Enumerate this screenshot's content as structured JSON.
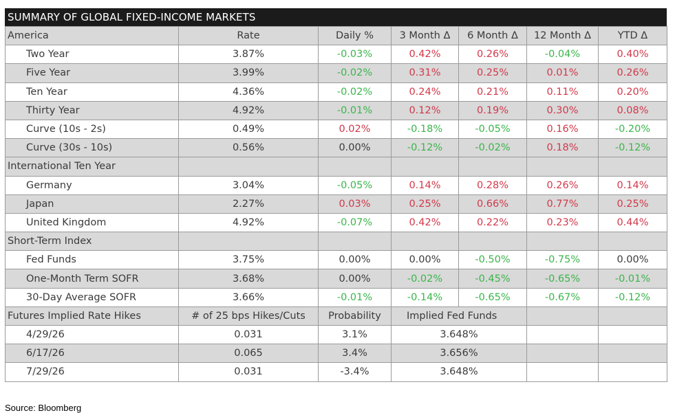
{
  "title": "SUMMARY OF GLOBAL FIXED-INCOME MARKETS",
  "colors": {
    "negative": "#3ab54a",
    "positive": "#d2384a",
    "header_bg": "#1b1b1b",
    "shade": "#d9d9d9"
  },
  "america": {
    "label": "America",
    "columns": [
      "Rate",
      "Daily %",
      "3 Month Δ",
      "6 Month Δ",
      "12 Month Δ",
      "YTD Δ"
    ],
    "rows": [
      {
        "name": "Two Year",
        "rate": "3.87%",
        "daily": "-0.03%",
        "m3": "0.42%",
        "m6": "0.26%",
        "m12": "-0.04%",
        "ytd": "0.40%"
      },
      {
        "name": "Five Year",
        "rate": "3.99%",
        "daily": "-0.02%",
        "m3": "0.31%",
        "m6": "0.25%",
        "m12": "0.01%",
        "ytd": "0.26%"
      },
      {
        "name": "Ten Year",
        "rate": "4.36%",
        "daily": "-0.02%",
        "m3": "0.24%",
        "m6": "0.21%",
        "m12": "0.11%",
        "ytd": "0.20%"
      },
      {
        "name": "Thirty Year",
        "rate": "4.92%",
        "daily": "-0.01%",
        "m3": "0.12%",
        "m6": "0.19%",
        "m12": "0.30%",
        "ytd": "0.08%"
      },
      {
        "name": "Curve (10s - 2s)",
        "rate": "0.49%",
        "daily": "0.02%",
        "m3": "-0.18%",
        "m6": "-0.05%",
        "m12": "0.16%",
        "ytd": "-0.20%"
      },
      {
        "name": "Curve (30s - 10s)",
        "rate": "0.56%",
        "daily": "0.00%",
        "m3": "-0.12%",
        "m6": "-0.02%",
        "m12": "0.18%",
        "ytd": "-0.12%"
      }
    ]
  },
  "international": {
    "label": "International Ten Year",
    "rows": [
      {
        "name": "Germany",
        "rate": "3.04%",
        "daily": "-0.05%",
        "m3": "0.14%",
        "m6": "0.28%",
        "m12": "0.26%",
        "ytd": "0.14%"
      },
      {
        "name": "Japan",
        "rate": "2.27%",
        "daily": "0.03%",
        "m3": "0.25%",
        "m6": "0.66%",
        "m12": "0.77%",
        "ytd": "0.25%"
      },
      {
        "name": "United Kingdom",
        "rate": "4.92%",
        "daily": "-0.07%",
        "m3": "0.42%",
        "m6": "0.22%",
        "m12": "0.23%",
        "ytd": "0.44%"
      }
    ]
  },
  "short_term": {
    "label": "Short-Term Index",
    "rows": [
      {
        "name": "Fed Funds",
        "rate": "3.75%",
        "daily": "0.00%",
        "m3": "0.00%",
        "m6": "-0.50%",
        "m12": "-0.75%",
        "ytd": "0.00%"
      },
      {
        "name": "One-Month Term SOFR",
        "rate": "3.68%",
        "daily": "0.00%",
        "m3": "-0.02%",
        "m6": "-0.45%",
        "m12": "-0.65%",
        "ytd": "-0.01%"
      },
      {
        "name": "30-Day Average SOFR",
        "rate": "3.66%",
        "daily": "-0.01%",
        "m3": "-0.14%",
        "m6": "-0.65%",
        "m12": "-0.67%",
        "ytd": "-0.12%"
      }
    ]
  },
  "futures": {
    "label": "Futures Implied Rate Hikes",
    "columns": [
      "# of 25 bps Hikes/Cuts",
      "Probability",
      "Implied Fed Funds"
    ],
    "rows": [
      {
        "date": "4/29/26",
        "hikes": "0.031",
        "probability": "3.1%",
        "implied": "3.648%"
      },
      {
        "date": "6/17/26",
        "hikes": "0.065",
        "probability": "3.4%",
        "implied": "3.656%"
      },
      {
        "date": "7/29/26",
        "hikes": "0.031",
        "probability": "-3.4%",
        "implied": "3.648%"
      }
    ]
  },
  "source": "Source: Bloomberg"
}
